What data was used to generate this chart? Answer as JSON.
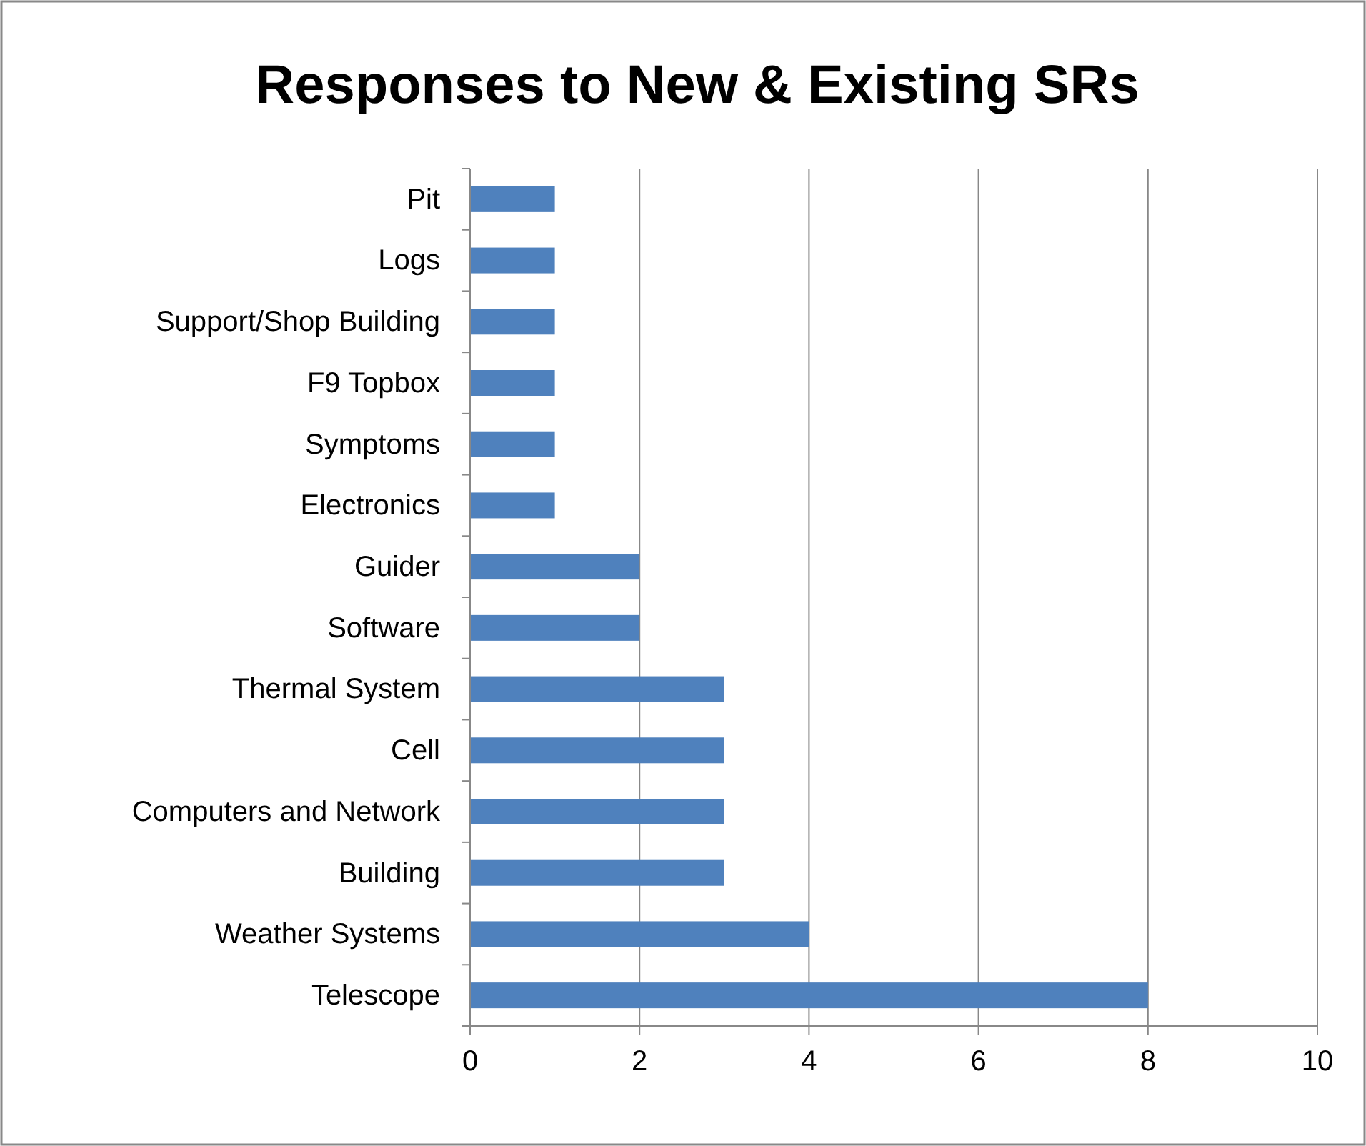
{
  "chart_data": {
    "type": "bar",
    "orientation": "horizontal",
    "title": "Responses to New & Existing SRs",
    "categories": [
      "Pit",
      "Logs",
      "Support/Shop Building",
      "F9 Topbox",
      "Symptoms",
      "Electronics",
      "Guider",
      "Software",
      "Thermal System",
      "Cell",
      "Computers and Network",
      "Building",
      "Weather Systems",
      "Telescope"
    ],
    "values": [
      1,
      1,
      1,
      1,
      1,
      1,
      2,
      2,
      3,
      3,
      3,
      3,
      4,
      8
    ],
    "color": "#4f81bd",
    "xlim": [
      0,
      10
    ],
    "xticks": [
      0,
      2,
      4,
      6,
      8,
      10
    ],
    "grid": "x"
  }
}
